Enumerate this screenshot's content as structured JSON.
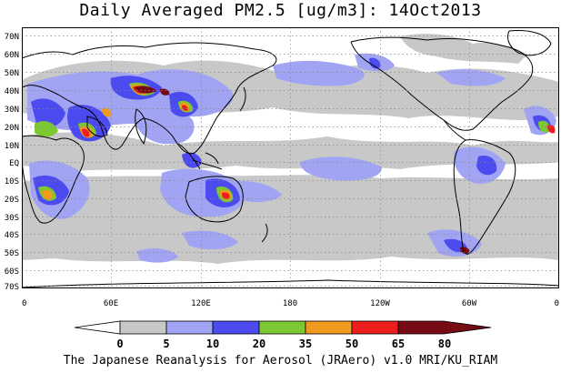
{
  "title": "Daily Averaged PM2.5 [ug/m3]: 14Oct2013",
  "footer": "The Japanese Reanalysis for Aerosol (JRAero) v1.0 MRI/KU_RIAM",
  "map": {
    "projection": "equirectangular, Pacific-centered, 0E to 360E",
    "lat_labels": [
      "70N",
      "60N",
      "50N",
      "40N",
      "30N",
      "20N",
      "10N",
      "EQ",
      "10S",
      "20S",
      "30S",
      "40S",
      "50S",
      "60S",
      "70S"
    ],
    "lon_labels": [
      "0",
      "60E",
      "120E",
      "180",
      "120W",
      "60W",
      "0"
    ],
    "gridlines": "dotted"
  },
  "colorbar": {
    "ticks": [
      "0",
      "5",
      "10",
      "20",
      "35",
      "50",
      "65",
      "80"
    ],
    "colors": [
      "#ffffff",
      "#c8c8c8",
      "#a0a4f2",
      "#4b4bf0",
      "#7cc832",
      "#f09a1e",
      "#ee1e1e",
      "#780a14"
    ]
  }
}
